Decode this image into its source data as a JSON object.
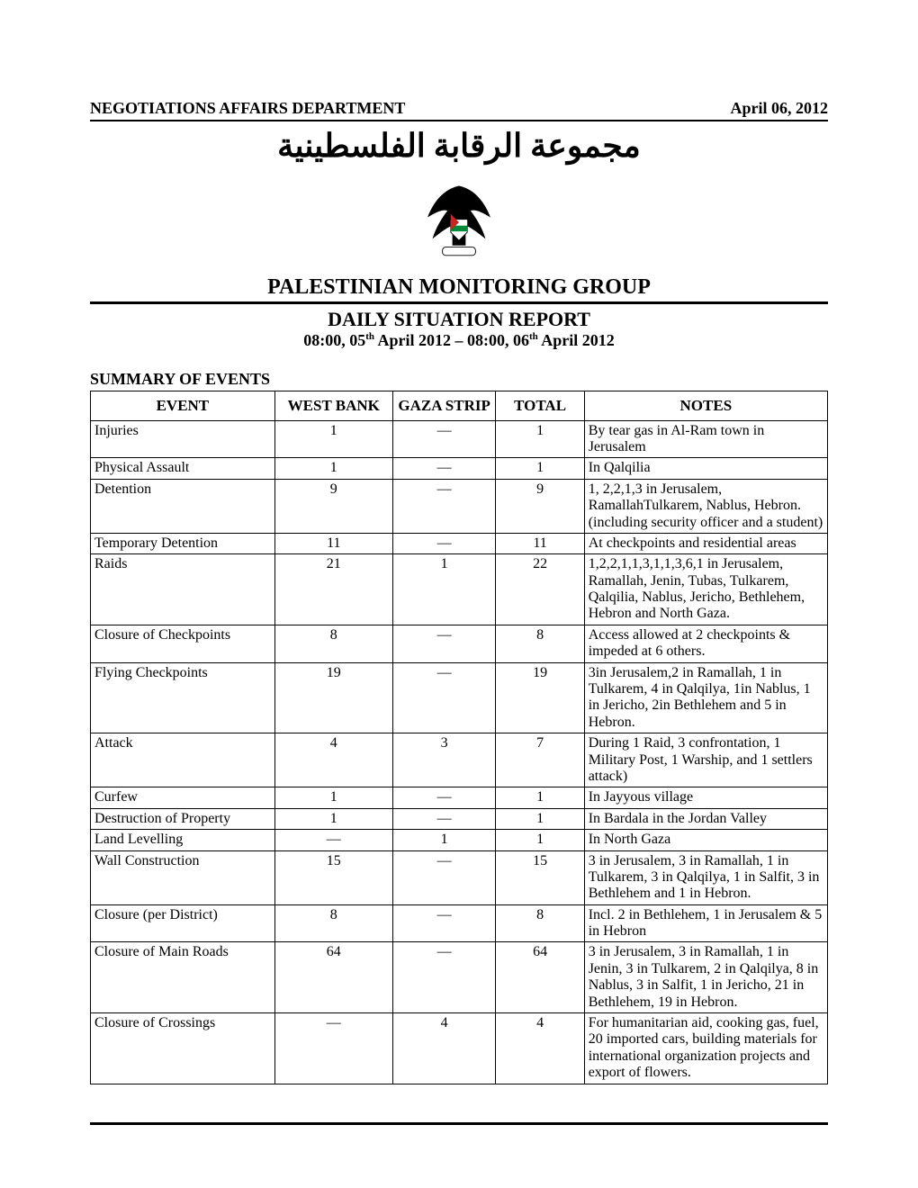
{
  "header": {
    "department": "NEGOTIATIONS AFFAIRS DEPARTMENT",
    "date": "April 06, 2012",
    "arabic_title": "مجموعة الرقابة الفلسطينية",
    "org_name": "PALESTINIAN MONITORING GROUP",
    "report_title": "DAILY SITUATION REPORT",
    "period_prefix": "08:00, 05",
    "period_sup1": "th",
    "period_mid": " April 2012 – 08:00, 06",
    "period_sup2": "th",
    "period_suffix": " April 2012"
  },
  "summary_heading": "SUMMARY OF EVENTS",
  "columns": {
    "event": "EVENT",
    "west_bank": "WEST BANK",
    "gaza_strip": "GAZA STRIP",
    "total": "TOTAL",
    "notes": "NOTES"
  },
  "rows": [
    {
      "event": "Injuries",
      "wb": "1",
      "gs": "—",
      "total": "1",
      "notes": "By tear gas in Al-Ram town in Jerusalem"
    },
    {
      "event": "Physical Assault",
      "wb": "1",
      "gs": "—",
      "total": "1",
      "notes": "In Qalqilia"
    },
    {
      "event": "Detention",
      "wb": "9",
      "gs": "—",
      "total": "9",
      "notes": "1, 2,2,1,3 in Jerusalem, RamallahTulkarem, Nablus, Hebron. (including security officer and a student)"
    },
    {
      "event": "Temporary Detention",
      "wb": "11",
      "gs": "—",
      "total": "11",
      "notes": "At checkpoints and residential areas"
    },
    {
      "event": "Raids",
      "wb": "21",
      "gs": "1",
      "total": "22",
      "notes": "1,2,2,1,1,3,1,1,3,6,1 in Jerusalem, Ramallah, Jenin, Tubas, Tulkarem, Qalqilia, Nablus, Jericho, Bethlehem, Hebron and North Gaza."
    },
    {
      "event": "Closure of Checkpoints",
      "wb": "8",
      "gs": "—",
      "total": "8",
      "notes": "Access allowed at 2 checkpoints & impeded at 6 others."
    },
    {
      "event": "Flying Checkpoints",
      "wb": "19",
      "gs": "—",
      "total": "19",
      "notes": "3in Jerusalem,2 in Ramallah, 1 in Tulkarem, 4 in Qalqilya, 1in Nablus, 1 in Jericho, 2in Bethlehem and 5 in Hebron."
    },
    {
      "event": "Attack",
      "wb": "4",
      "gs": "3",
      "total": "7",
      "notes": " During 1 Raid, 3 confrontation, 1 Military Post, 1 Warship, and 1 settlers attack)"
    },
    {
      "event": "Curfew",
      "wb": "1",
      "gs": "—",
      "total": "1",
      "notes": "In Jayyous village"
    },
    {
      "event": "Destruction of Property",
      "wb": "1",
      "gs": "—",
      "total": "1",
      "notes": "In Bardala in the Jordan Valley"
    },
    {
      "event": "Land Levelling",
      "wb": "—",
      "gs": "1",
      "total": "1",
      "notes": "In North Gaza"
    },
    {
      "event": "Wall Construction",
      "wb": "15",
      "gs": "—",
      "total": "15",
      "notes": "3 in Jerusalem, 3 in Ramallah, 1 in Tulkarem, 3 in Qalqilya, 1 in Salfit, 3 in Bethlehem and 1 in Hebron."
    },
    {
      "event": "Closure (per District)",
      "wb": "8",
      "gs": "—",
      "total": "8",
      "notes": "Incl. 2 in Bethlehem, 1 in Jerusalem & 5 in Hebron"
    },
    {
      "event": "Closure of Main Roads",
      "wb": "64",
      "gs": "—",
      "total": "64",
      "notes": "3 in Jerusalem, 3 in Ramallah, 1 in Jenin, 3 in Tulkarem, 2 in Qalqilya, 8 in Nablus, 3 in Salfit, 1 in Jericho, 21 in Bethlehem, 19 in Hebron."
    },
    {
      "event": "Closure of Crossings",
      "wb": "—",
      "gs": "4",
      "total": "4",
      "notes": "For humanitarian aid, cooking gas, fuel, 20 imported cars, building materials for international organization projects and export of flowers."
    }
  ],
  "emblem_colors": {
    "black": "#000000",
    "white": "#ffffff",
    "red": "#cc2222",
    "green": "#008a3a",
    "gold": "#c9a227"
  }
}
